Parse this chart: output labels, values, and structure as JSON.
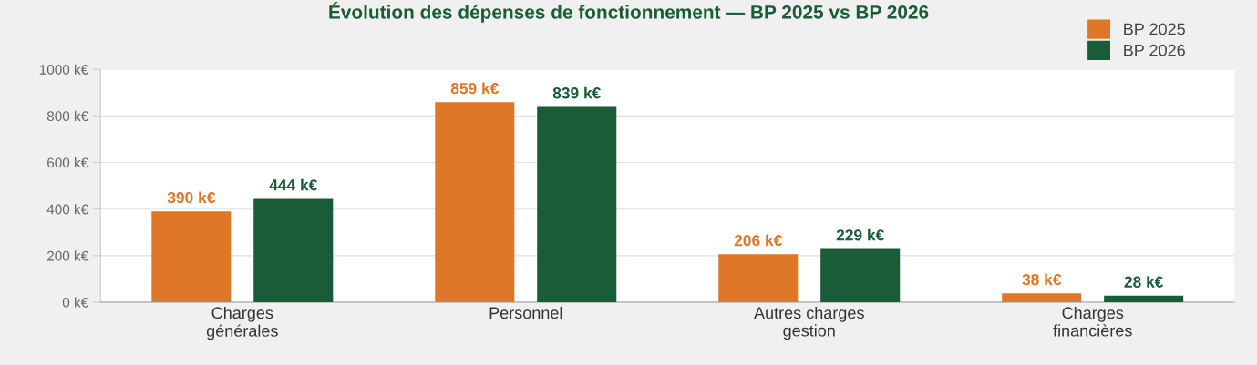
{
  "chart_data": {
    "type": "bar",
    "title": "Évolution des dépenses de fonctionnement — BP 2025 vs BP 2026",
    "categories": [
      "Charges\ngénérales",
      "Personnel",
      "Autres charges\ngestion",
      "Charges\nfinancières"
    ],
    "series": [
      {
        "name": "BP 2025",
        "color": "#de7828",
        "values": [
          390,
          859,
          206,
          38
        ],
        "value_labels": [
          "390 k€",
          "859 k€",
          "206 k€",
          "38 k€"
        ]
      },
      {
        "name": "BP 2026",
        "color": "#1a5c38",
        "values": [
          444,
          839,
          229,
          28
        ],
        "value_labels": [
          "444 k€",
          "839 k€",
          "229 k€",
          "28 k€"
        ]
      }
    ],
    "ylim": [
      0,
      1000
    ],
    "yticks": [
      {
        "value": 0,
        "label": "0 k€"
      },
      {
        "value": 200,
        "label": "200 k€"
      },
      {
        "value": 400,
        "label": "400 k€"
      },
      {
        "value": 600,
        "label": "600 k€"
      },
      {
        "value": 800,
        "label": "800 k€"
      },
      {
        "value": 1000,
        "label": "1000 k€"
      }
    ],
    "grid": "y",
    "legend": "top right"
  }
}
